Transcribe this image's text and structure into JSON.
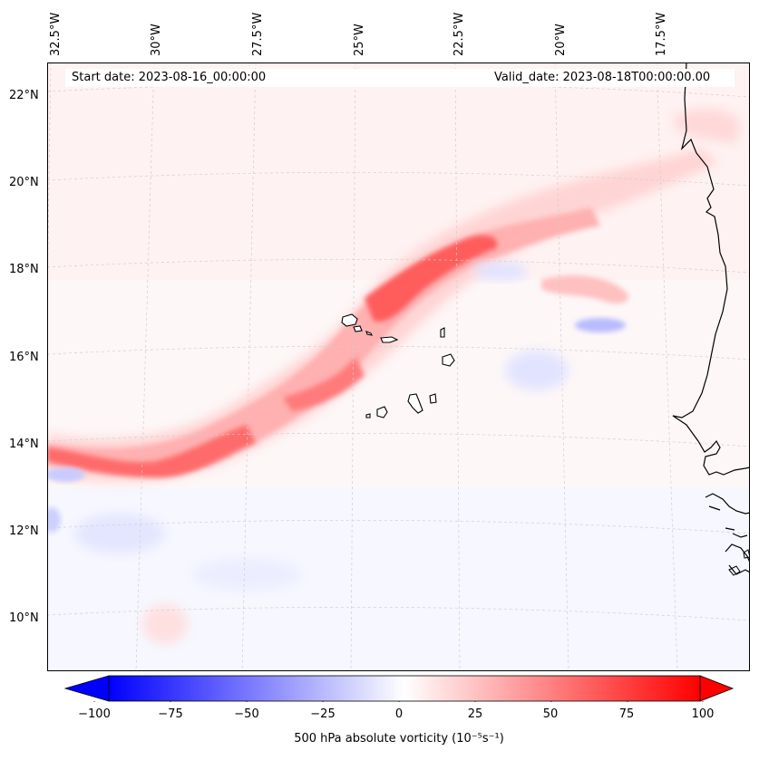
{
  "map": {
    "start_date": "Start date: 2023-08-16_00:00:00",
    "valid_date": "Valid_date: 2023-08-18T00:00:00.00",
    "lon_labels": [
      "32.5°W",
      "30°W",
      "27.5°W",
      "25°W",
      "22.5°W",
      "20°W",
      "17.5°W"
    ],
    "lat_labels": [
      "22°N",
      "20°N",
      "18°N",
      "16°N",
      "14°N",
      "12°N",
      "10°N"
    ],
    "islands": [
      "Santo Antão",
      "São Vicente",
      "São Nicolau",
      "Sal",
      "Boa Vista",
      "Santiago",
      "Fogo",
      "Brava",
      "Maio"
    ],
    "colors": {
      "positive": "#ff0000",
      "negative": "#0000ff",
      "neutral": "#ffffff",
      "coast": "#000000"
    }
  },
  "colorbar": {
    "ticks": [
      "−100",
      "−75",
      "−50",
      "−25",
      "0",
      "25",
      "50",
      "75",
      "100"
    ],
    "label": "500 hPa absolute vorticity (10⁻⁵s⁻¹)",
    "range": [
      -100,
      100
    ]
  }
}
